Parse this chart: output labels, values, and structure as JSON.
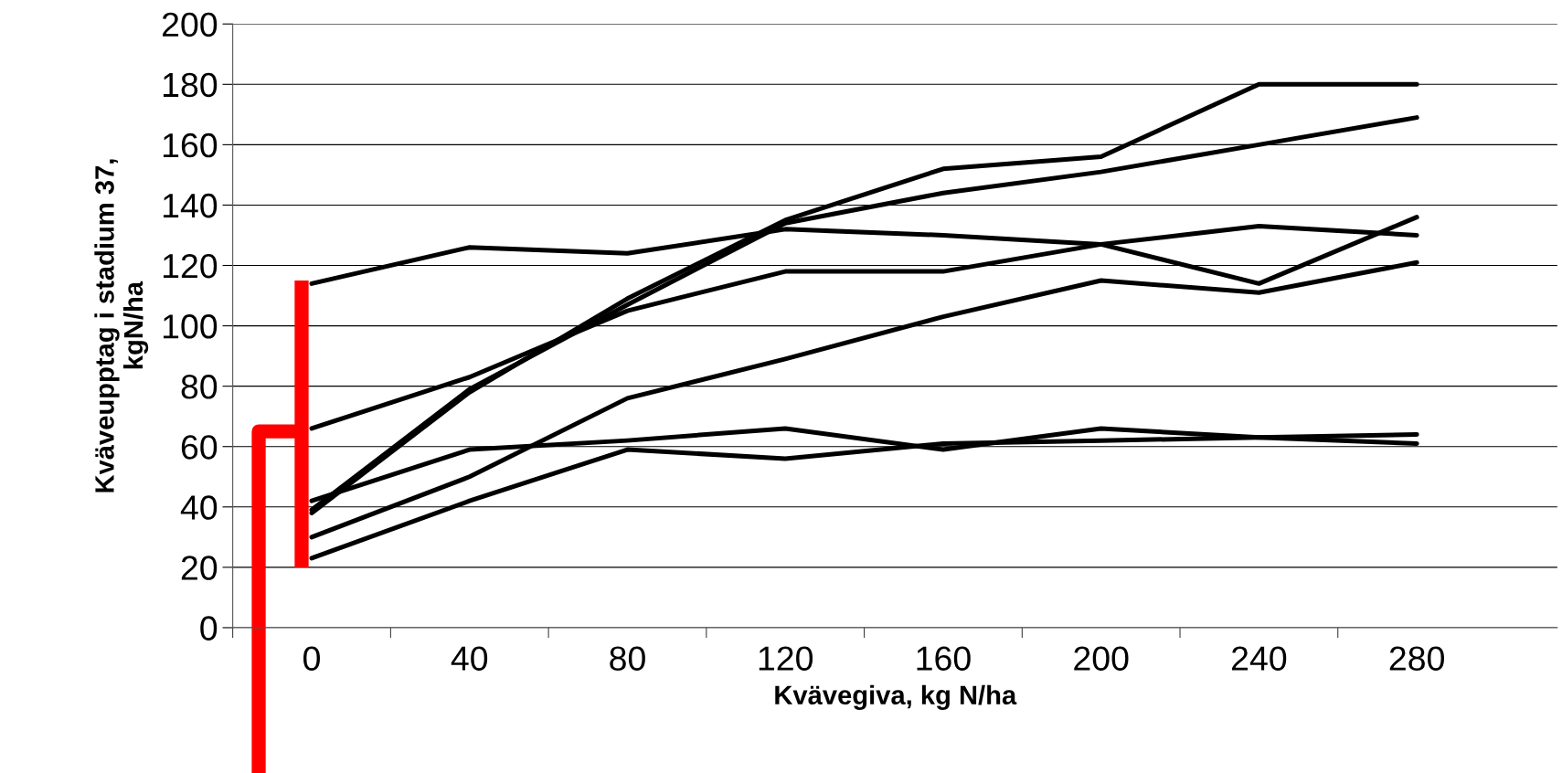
{
  "chart_data": {
    "type": "line",
    "xlabel": "Kvävegiva, kg N/ha",
    "ylabel": "Kväveupptag i stadium 37,\nkgN/ha",
    "categories": [
      "0",
      "40",
      "80",
      "120",
      "160",
      "200",
      "240",
      "280"
    ],
    "series": [
      {
        "color": "#000000",
        "values": [
          38,
          78,
          109,
          135,
          152,
          156,
          180,
          180
        ]
      },
      {
        "color": "#000000",
        "values": [
          39,
          79,
          107,
          134,
          144,
          151,
          160,
          169
        ]
      },
      {
        "color": "#000000",
        "values": [
          114,
          126,
          124,
          132,
          130,
          127,
          133,
          130
        ]
      },
      {
        "color": "#000000",
        "values": [
          66,
          83,
          105,
          118,
          118,
          127,
          114,
          136
        ]
      },
      {
        "color": "#000000",
        "values": [
          30,
          50,
          76,
          89,
          103,
          115,
          111,
          121
        ]
      },
      {
        "color": "#000000",
        "values": [
          42,
          59,
          62,
          66,
          59,
          66,
          63,
          61
        ]
      },
      {
        "color": "#000000",
        "values": [
          23,
          42,
          59,
          56,
          61,
          62,
          63,
          64
        ]
      }
    ],
    "ylim": [
      0,
      200
    ],
    "yticks": [
      0,
      20,
      40,
      60,
      80,
      100,
      120,
      140,
      160,
      180,
      200
    ],
    "grid": "y",
    "marker": "none",
    "line_style": "solid"
  }
}
